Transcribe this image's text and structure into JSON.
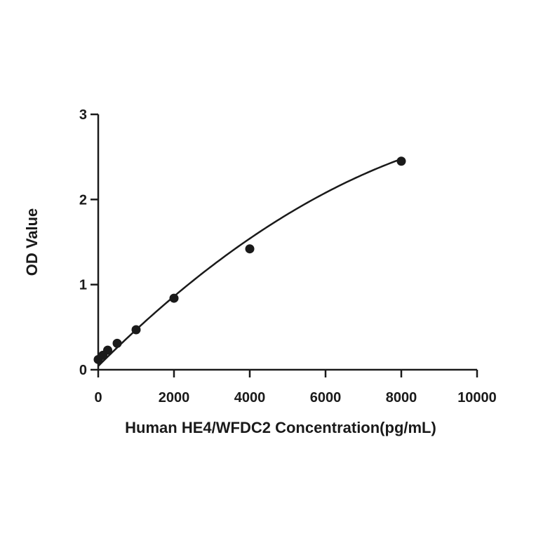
{
  "chart_data": {
    "type": "scatter",
    "title": "",
    "xlabel": "Human HE4/WFDC2 Concentration(pg/mL)",
    "ylabel": "OD Value",
    "xlim": [
      0,
      10000
    ],
    "ylim": [
      0,
      3
    ],
    "x_ticks": [
      0,
      2000,
      4000,
      6000,
      8000,
      10000
    ],
    "y_ticks": [
      0,
      1,
      2,
      3
    ],
    "grid": false,
    "legend": "none",
    "series": [
      {
        "points": [
          {
            "x": 0,
            "y": 0.12
          },
          {
            "x": 125,
            "y": 0.17
          },
          {
            "x": 250,
            "y": 0.23
          },
          {
            "x": 500,
            "y": 0.31
          },
          {
            "x": 1000,
            "y": 0.47
          },
          {
            "x": 2000,
            "y": 0.84
          },
          {
            "x": 4000,
            "y": 1.42
          },
          {
            "x": 8000,
            "y": 2.45
          }
        ],
        "fit_curve": {
          "a": 0.0424,
          "b": 0.000445,
          "c": -1.76e-08
        }
      }
    ],
    "colors": {
      "ink": "#1a1a1a",
      "background": "#ffffff"
    }
  }
}
